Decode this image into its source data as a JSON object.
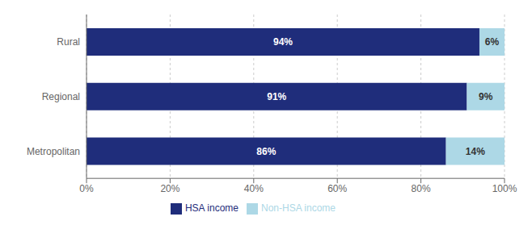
{
  "chart_data": {
    "type": "bar",
    "orientation": "horizontal",
    "stacked": true,
    "categories": [
      "Metropolitan",
      "Regional",
      "Rural"
    ],
    "series": [
      {
        "name": "HSA income",
        "color": "#1F2D7B",
        "values": [
          86,
          91,
          94
        ],
        "value_labels": [
          "86%",
          "91%",
          "94%"
        ]
      },
      {
        "name": "Non-HSA income",
        "color": "#ADD8E6",
        "values": [
          14,
          9,
          6
        ],
        "value_labels": [
          "14%",
          "9%",
          "6%"
        ]
      }
    ],
    "xlim": [
      0,
      100
    ],
    "xticks": [
      {
        "value": 0,
        "label": "0%"
      },
      {
        "value": 20,
        "label": "20%"
      },
      {
        "value": 40,
        "label": "40%"
      },
      {
        "value": 60,
        "label": "60%"
      },
      {
        "value": 80,
        "label": "80%"
      },
      {
        "value": 100,
        "label": "100%"
      }
    ],
    "grid": true,
    "legend": "bottom",
    "data_labels": true
  }
}
